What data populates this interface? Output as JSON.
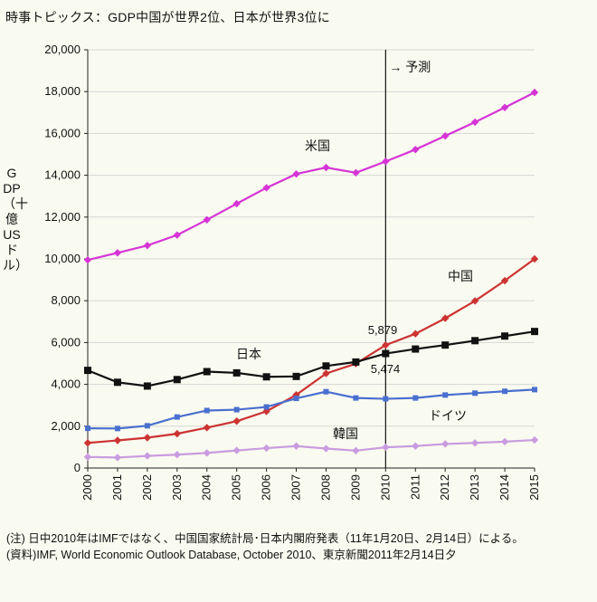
{
  "title": "時事トピックス：GDP中国が世界2位、日本が世界3位に",
  "notes": [
    "(注) 日中2010年はIMFではなく、中国国家統計局･日本内閣府発表（11年1月20日、2月14日）による。",
    "(資料)IMF, World Economic Outlook Database, October 2010、東京新聞2011年2月14日夕"
  ],
  "chart_data": {
    "type": "line",
    "ylabel": "GDP（十億USドル）",
    "xlabel": "",
    "x": [
      "2000",
      "2001",
      "2002",
      "2003",
      "2004",
      "2005",
      "2006",
      "2007",
      "2008",
      "2009",
      "2010",
      "2011",
      "2012",
      "2013",
      "2014",
      "2015"
    ],
    "ylim": [
      0,
      20000
    ],
    "yticks": [
      "0",
      "2,000",
      "4,000",
      "6,000",
      "8,000",
      "10,000",
      "12,000",
      "14,000",
      "16,000",
      "18,000",
      "20,000"
    ],
    "forecast": {
      "x": "2010",
      "label": "→ 予測"
    },
    "series": [
      {
        "name": "米国",
        "color": "#d634d6",
        "marker": "diamond",
        "values": [
          9950,
          10290,
          10640,
          11140,
          11870,
          12640,
          13400,
          14060,
          14370,
          14120,
          14660,
          15230,
          15880,
          16540,
          17240,
          17960
        ]
      },
      {
        "name": "中国",
        "color": "#cc3333",
        "marker": "diamond",
        "values": [
          1200,
          1320,
          1450,
          1640,
          1930,
          2240,
          2710,
          3500,
          4520,
          4990,
          5879,
          6420,
          7160,
          7990,
          8960,
          10000
        ]
      },
      {
        "name": "日本",
        "color": "#111111",
        "marker": "square",
        "values": [
          4670,
          4100,
          3920,
          4230,
          4610,
          4550,
          4360,
          4380,
          4880,
          5070,
          5474,
          5690,
          5880,
          6090,
          6310,
          6530
        ]
      },
      {
        "name": "ドイツ",
        "color": "#4a6fd0",
        "marker": "square",
        "values": [
          1900,
          1890,
          2020,
          2440,
          2750,
          2790,
          2920,
          3330,
          3650,
          3350,
          3310,
          3350,
          3490,
          3580,
          3670,
          3750
        ]
      },
      {
        "name": "韓国",
        "color": "#c99ce0",
        "marker": "diamond",
        "values": [
          530,
          500,
          580,
          640,
          720,
          840,
          950,
          1050,
          930,
          830,
          990,
          1050,
          1150,
          1200,
          1260,
          1340
        ]
      }
    ],
    "annotations": [
      "5,879",
      "5,474"
    ]
  }
}
